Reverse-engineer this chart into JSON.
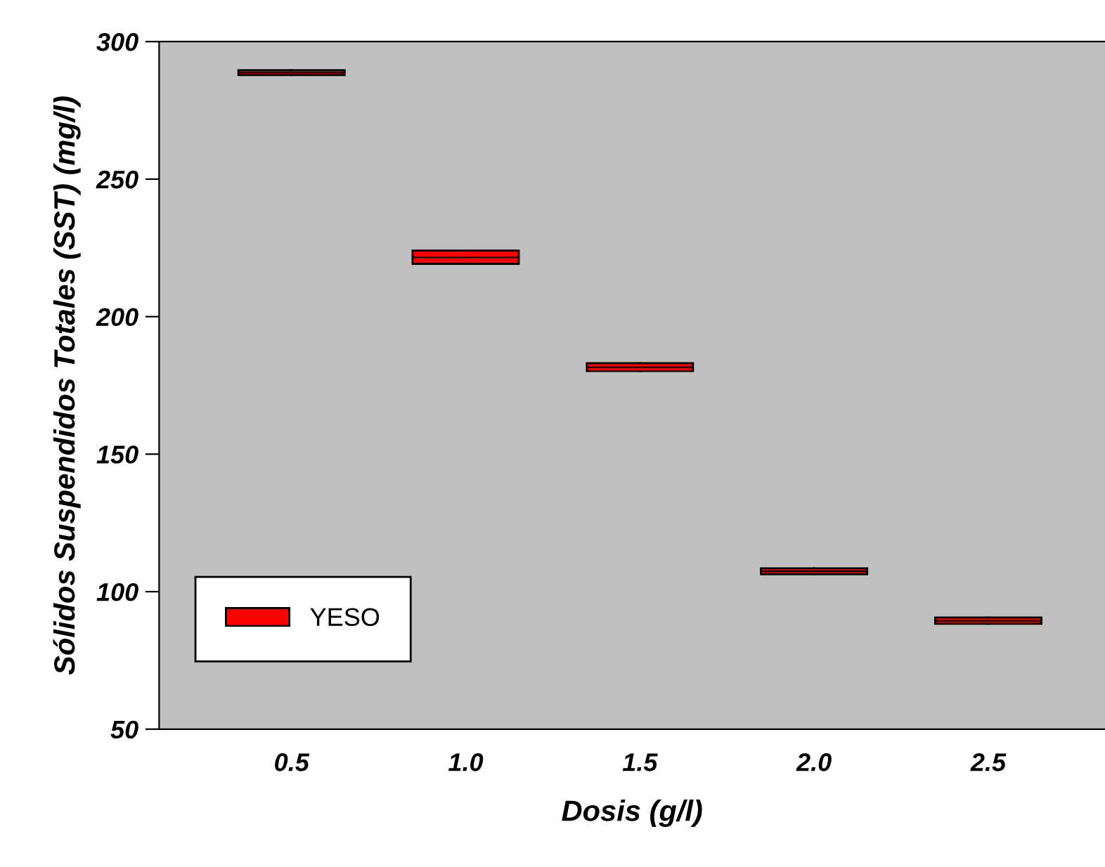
{
  "chart_data": {
    "type": "box",
    "xlabel": "Dosis (g/l)",
    "ylabel": "Sólidos Suspendidos Totales (SST) (mg/l)",
    "categories": [
      "0.5",
      "1.0",
      "1.5",
      "2.0",
      "2.5"
    ],
    "series": [
      {
        "name": "YESO",
        "color": "#ff0000",
        "boxes": [
          {
            "low": 287.8,
            "q1": 287.8,
            "median": 288.7,
            "q3": 289.6,
            "high": 289.6
          },
          {
            "low": 219.2,
            "q1": 219.2,
            "median": 221.6,
            "q3": 224.0,
            "high": 224.0
          },
          {
            "low": 180.2,
            "q1": 180.2,
            "median": 181.6,
            "q3": 183.1,
            "high": 183.1
          },
          {
            "low": 106.3,
            "q1": 106.3,
            "median": 107.4,
            "q3": 108.5,
            "high": 108.5
          },
          {
            "low": 88.3,
            "q1": 88.3,
            "median": 89.4,
            "q3": 90.6,
            "high": 90.6
          }
        ]
      }
    ],
    "ylim": [
      50,
      300
    ],
    "yticks": [
      50,
      100,
      150,
      200,
      250,
      300
    ],
    "grid": false,
    "legend": "bottom left"
  }
}
